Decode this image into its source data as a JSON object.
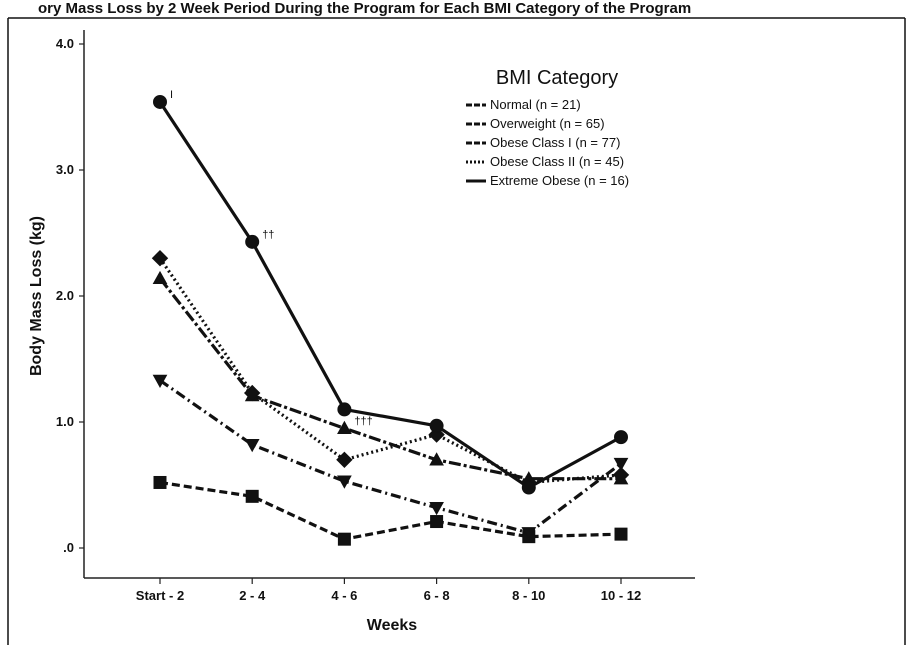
{
  "chart_data": {
    "type": "line",
    "title": "ory Mass Loss by 2 Week Period During the Program for Each BMI Category of the Program",
    "xlabel": "Weeks",
    "ylabel": "Body Mass Loss (kg)",
    "categories": [
      "Start - 2",
      "2 - 4",
      "4 - 6",
      "6 - 8",
      "8 - 10",
      "10 - 12"
    ],
    "ylim": [
      0,
      4.0
    ],
    "yticks": [
      ".0",
      "1.0",
      "2.0",
      "3.0",
      "4.0"
    ],
    "grid": false,
    "legend": {
      "title": "BMI Category",
      "position": "top-right",
      "entries": [
        "Normal (n = 21)",
        "Overweight (n = 65)",
        "Obese Class I (n = 77)",
        "Obese Class II (n = 45)",
        "Extreme Obese (n = 16)"
      ]
    },
    "series": [
      {
        "name": "Normal (n = 21)",
        "values": [
          0.52,
          0.41,
          0.07,
          0.21,
          0.09,
          0.11
        ],
        "marker": "square",
        "dash": "8,4"
      },
      {
        "name": "Overweight (n = 65)",
        "values": [
          1.33,
          0.82,
          0.53,
          0.32,
          0.12,
          0.67
        ],
        "marker": "triangle-down",
        "dash": "10,4,2,4"
      },
      {
        "name": "Obese Class I (n = 77)",
        "values": [
          2.14,
          1.21,
          0.95,
          0.7,
          0.55,
          0.55
        ],
        "marker": "triangle-up",
        "dash": "12,3,3,3"
      },
      {
        "name": "Obese Class II (n = 45)",
        "values": [
          2.3,
          1.23,
          0.7,
          0.9,
          0.52,
          0.58
        ],
        "marker": "diamond",
        "dash": "2,3"
      },
      {
        "name": "Extreme Obese (n = 16)",
        "values": [
          3.54,
          2.43,
          1.1,
          0.97,
          0.48,
          0.88
        ],
        "marker": "circle",
        "dash": ""
      }
    ],
    "annotations": [
      {
        "text": "I",
        "category": "Start - 2",
        "value": 3.54
      },
      {
        "text": "††",
        "category": "2 - 4",
        "value": 2.43
      },
      {
        "text": "†††",
        "category": "4 - 6",
        "value": 0.95
      }
    ]
  }
}
